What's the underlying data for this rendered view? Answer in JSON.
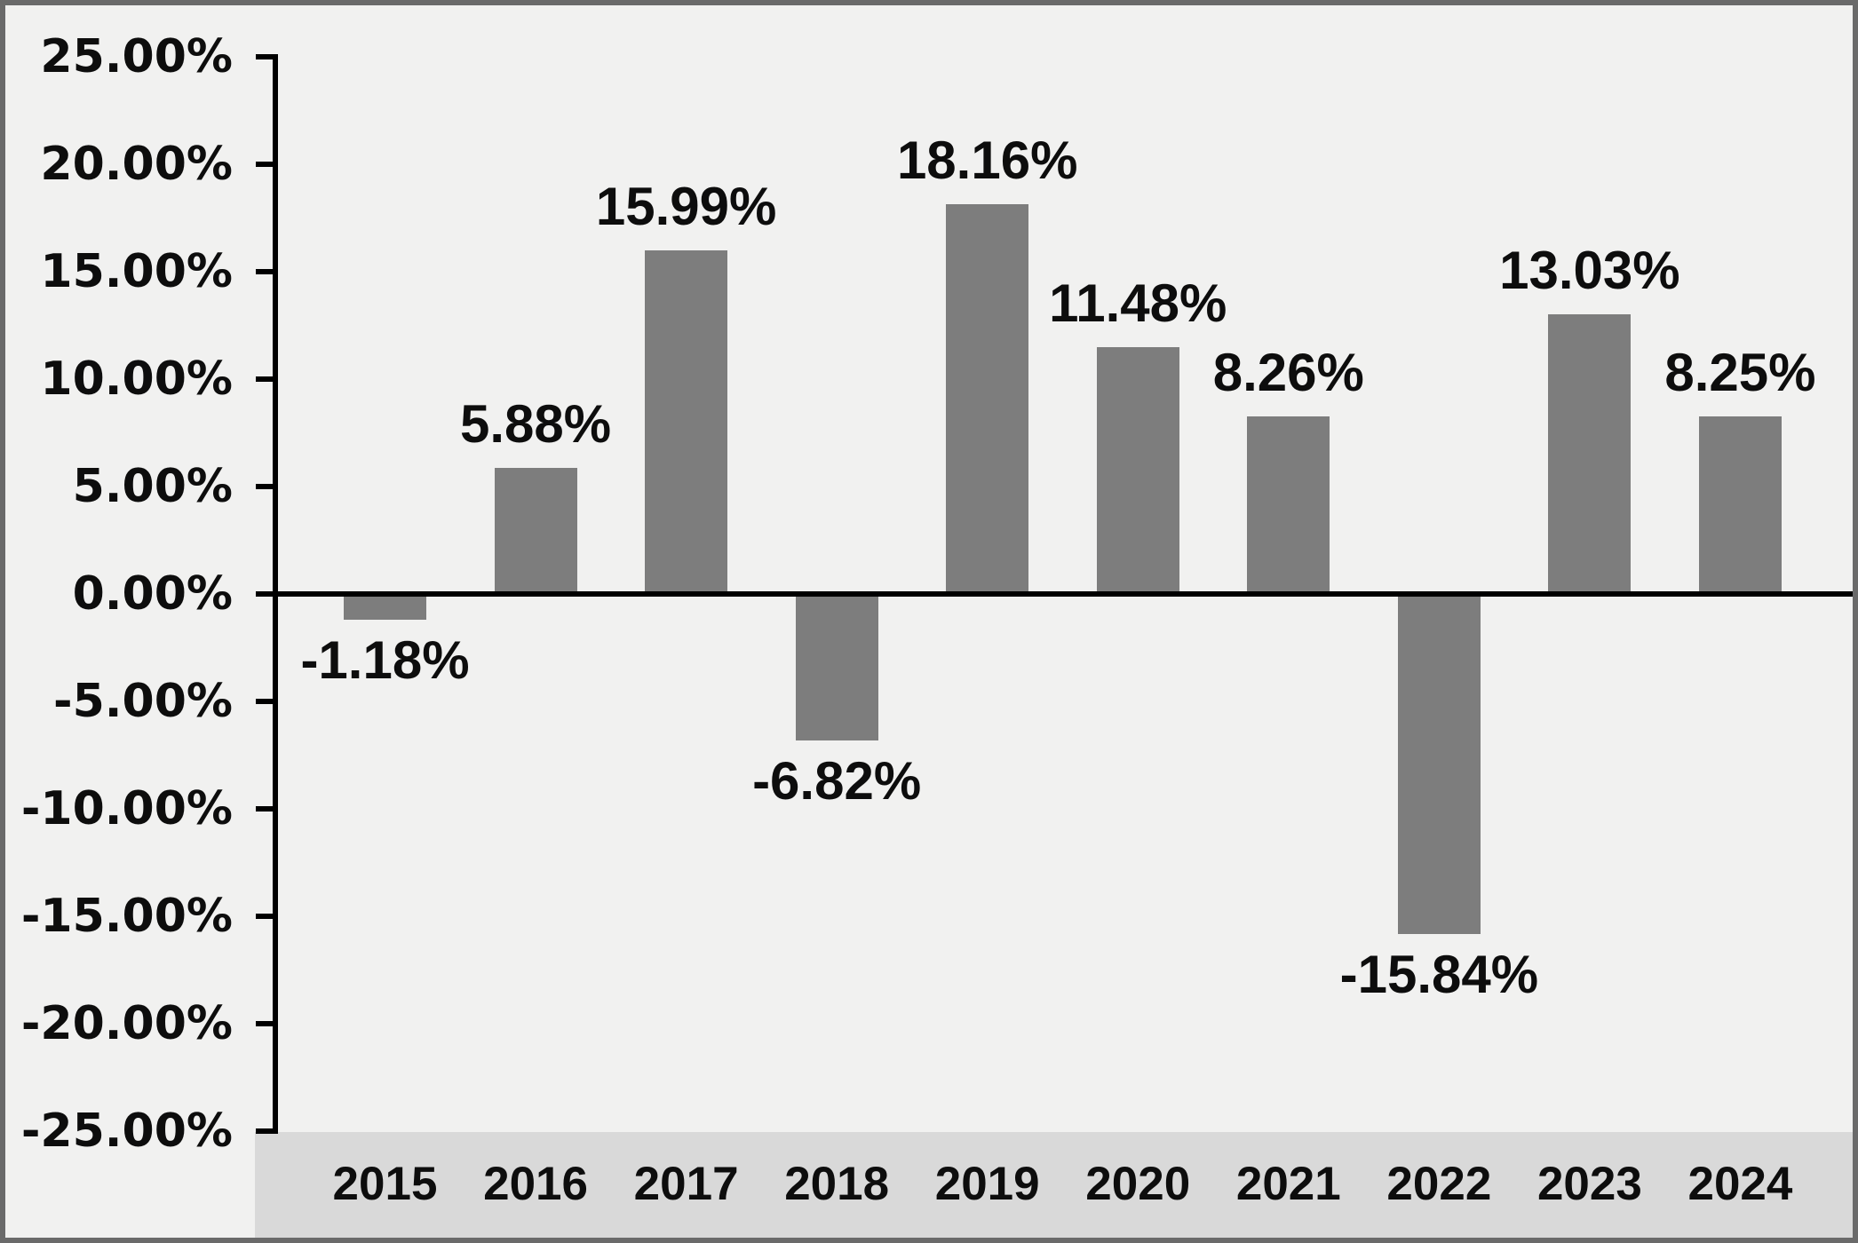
{
  "chart_data": {
    "type": "bar",
    "title": "",
    "xlabel": "",
    "ylabel": "",
    "categories": [
      "2015",
      "2016",
      "2017",
      "2018",
      "2019",
      "2020",
      "2021",
      "2022",
      "2023",
      "2024"
    ],
    "values": [
      -1.18,
      5.88,
      15.99,
      -6.82,
      18.16,
      11.48,
      8.26,
      -15.84,
      13.03,
      8.25
    ],
    "value_labels": [
      "-1.18%",
      "5.88%",
      "15.99%",
      "-6.82%",
      "18.16%",
      "11.48%",
      "8.26%",
      "-15.84%",
      "13.03%",
      "8.25%"
    ],
    "ylim": [
      -25,
      25
    ],
    "ytick_step": 5,
    "yticks": [
      25,
      20,
      15,
      10,
      5,
      0,
      -5,
      -10,
      -15,
      -20,
      -25
    ],
    "ytick_labels": [
      "25.00%",
      "20.00%",
      "15.00%",
      "10.00%",
      "5.00%",
      "0.00%",
      "-5.00%",
      "-10.00%",
      "-15.00%",
      "-20.00%",
      "-25.00%"
    ],
    "grid": false,
    "legend": null,
    "colors": {
      "bar": "#7d7d7d",
      "plot_background": "#f1f1f0",
      "x_band_background": "#d9d9d9",
      "axis": "#000000",
      "text": "#0d0d0d",
      "frame_border": "#6a6a6a"
    }
  }
}
